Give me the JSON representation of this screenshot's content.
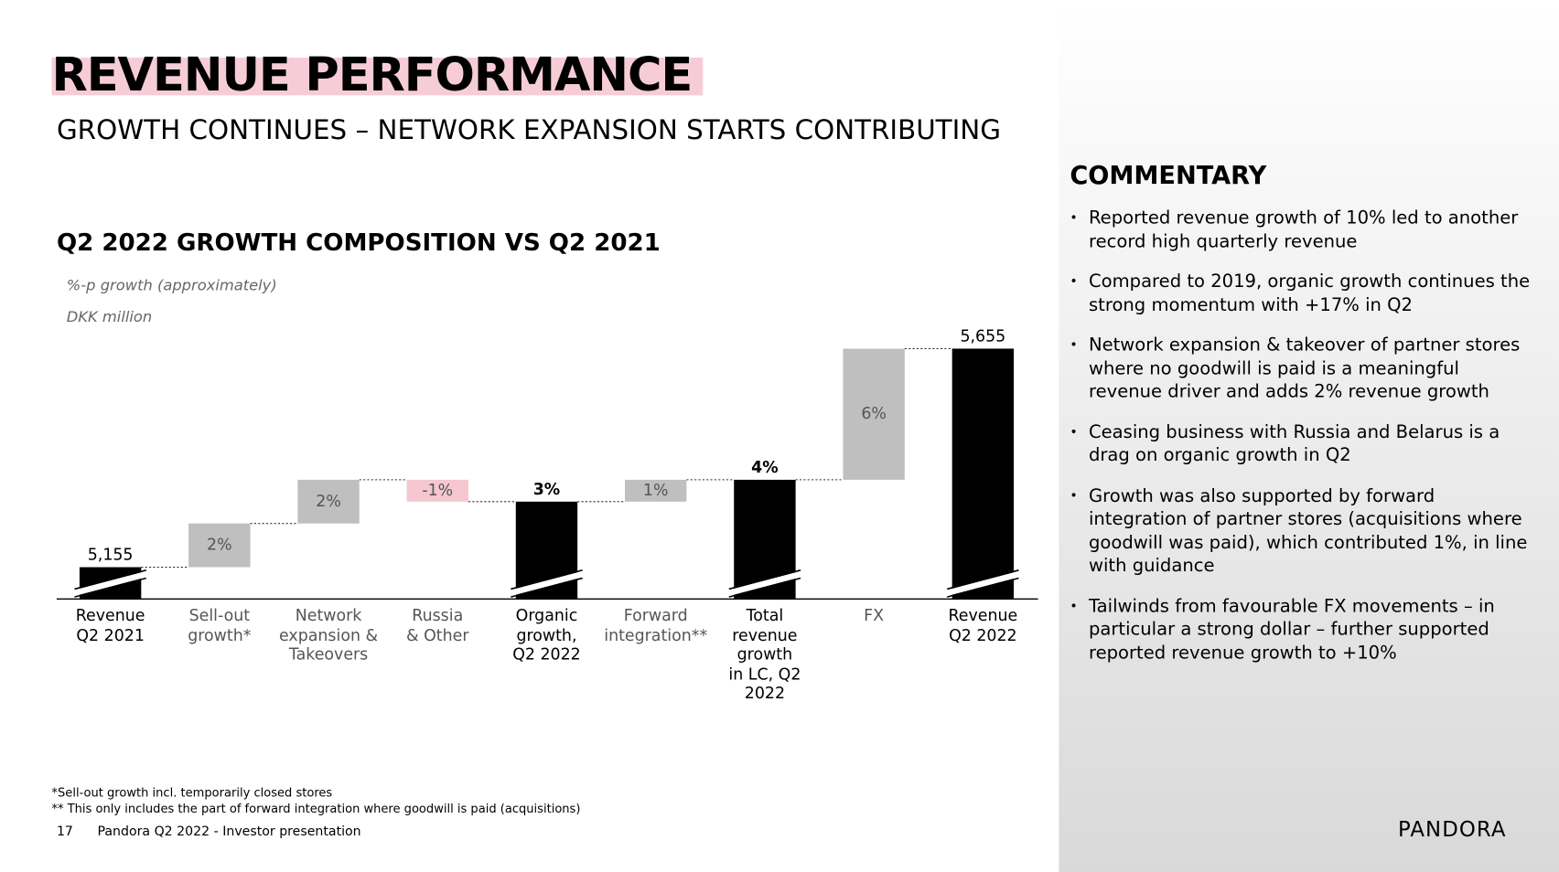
{
  "header": {
    "title": "REVENUE PERFORMANCE",
    "subtitle": "GROWTH CONTINUES – NETWORK EXPANSION STARTS CONTRIBUTING"
  },
  "chart_data": {
    "type": "waterfall",
    "title": "Q2 2022 GROWTH COMPOSITION VS Q2 2021",
    "subtitles": [
      "%-p growth (approximately)",
      "DKK million"
    ],
    "categories": [
      "Revenue\nQ2 2021",
      "Sell-out\ngrowth*",
      "Network\nexpansion &\nTakeovers",
      "Russia\n& Other",
      "Organic\ngrowth,\nQ2 2022",
      "Forward\nintegration**",
      "Total\nrevenue\ngrowth\nin LC, Q2\n2022",
      "FX",
      "Revenue\nQ2 2022"
    ],
    "values": [
      5155,
      2,
      2,
      -1,
      3,
      1,
      4,
      6,
      5655
    ],
    "value_labels": [
      "5,155",
      "2%",
      "2%",
      "-1%",
      "3%",
      "1%",
      "4%",
      "6%",
      "5,655"
    ],
    "bar_kinds": [
      "total",
      "delta",
      "delta",
      "delta",
      "subtotal",
      "delta",
      "subtotal",
      "delta",
      "total"
    ],
    "colors": {
      "total": "#000000",
      "increase": "#bfbfbf",
      "decrease": "#f4c7d1"
    }
  },
  "commentary": {
    "title": "COMMENTARY",
    "items": [
      "Reported revenue growth of 10% led to another record high quarterly revenue",
      "Compared to 2019, organic growth continues the strong momentum with +17% in Q2",
      "Network expansion & takeover of partner stores where no goodwill is paid is a meaningful revenue driver and adds 2% revenue growth",
      "Ceasing business with Russia and Belarus is a drag on organic growth in Q2",
      "Growth was also supported by forward integration of partner stores (acquisitions where goodwill was paid), which contributed 1%, in line with guidance",
      "Tailwinds from favourable FX movements – in particular a strong dollar – further supported reported revenue growth to +10%"
    ]
  },
  "footer": {
    "notes": [
      "*Sell-out growth incl. temporarily closed stores",
      "** This only includes the part of forward integration where goodwill is paid (acquisitions)"
    ],
    "page": 17,
    "source": "Pandora Q2 2022 - Investor presentation",
    "logo": "PANDORA"
  }
}
